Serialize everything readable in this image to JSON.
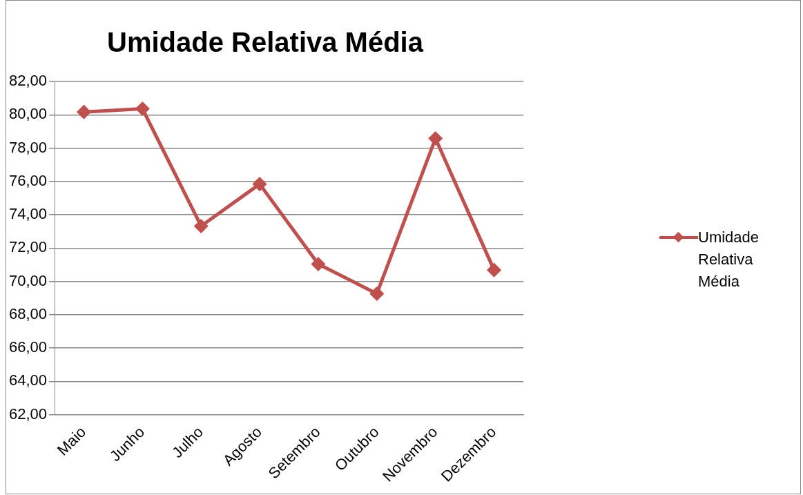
{
  "chart_data": {
    "type": "line",
    "title": "Umidade Relativa Média",
    "categories": [
      "Maio",
      "Junho",
      "Julho",
      "Agosto",
      "Setembro",
      "Outubro",
      "Novembro",
      "Dezembro"
    ],
    "series": [
      {
        "name": "Umidade Relativa Média",
        "color": "#c0504d",
        "values": [
          80.17,
          80.36,
          73.32,
          75.84,
          71.04,
          69.26,
          78.58,
          70.68
        ]
      }
    ],
    "ylim": [
      62,
      82
    ],
    "yticks": [
      {
        "value": 62,
        "label": "62,00"
      },
      {
        "value": 64,
        "label": "64,00"
      },
      {
        "value": 66,
        "label": "66,00"
      },
      {
        "value": 68,
        "label": "68,00"
      },
      {
        "value": 70,
        "label": "70,00"
      },
      {
        "value": 72,
        "label": "72,00"
      },
      {
        "value": 74,
        "label": "74,00"
      },
      {
        "value": 76,
        "label": "76,00"
      },
      {
        "value": 78,
        "label": "78,00"
      },
      {
        "value": 80,
        "label": "80,00"
      },
      {
        "value": 82,
        "label": "82,00"
      }
    ],
    "grid": "y",
    "legend": "right",
    "marker": "diamond",
    "line_style": "solid"
  }
}
